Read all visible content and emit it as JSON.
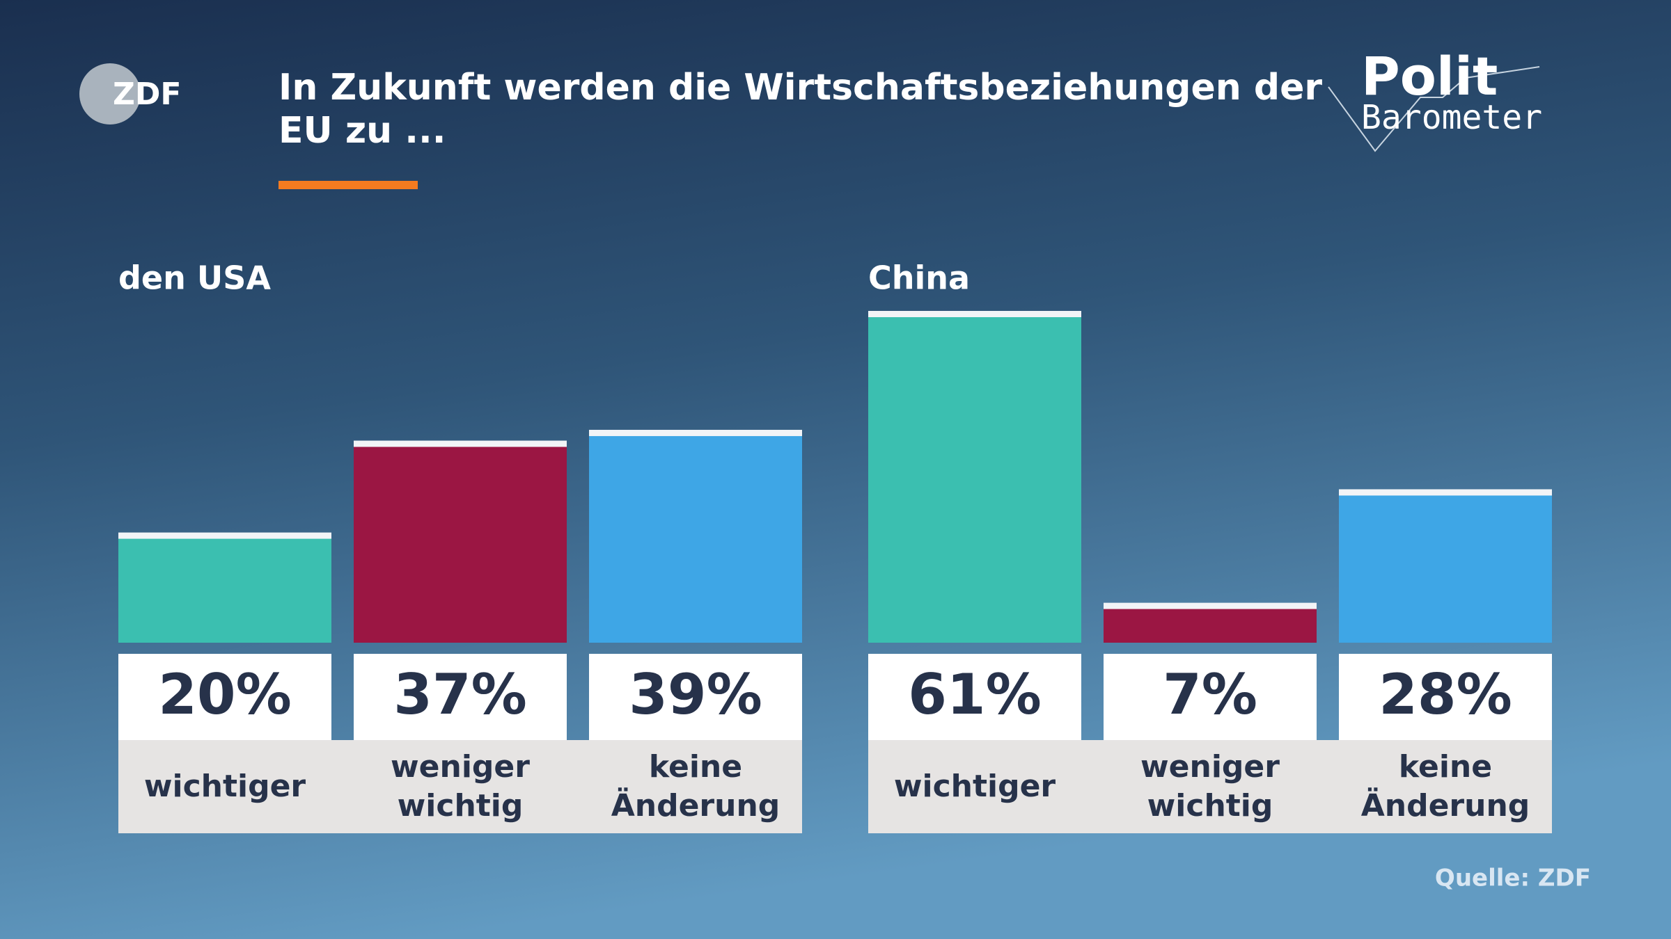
{
  "title": "In Zukunft werden die Wirtschaftsbeziehungen der EU zu ...",
  "logo": "ZDF",
  "brand": [
    "Polit",
    "Barometer"
  ],
  "source": "Quelle: ZDF",
  "chart_data": [
    {
      "type": "bar",
      "title": "den USA",
      "categories": [
        "wichtiger",
        "weniger wichtig",
        "keine Änderung"
      ],
      "values": [
        20,
        37,
        39
      ],
      "value_labels": [
        "20%",
        "37%",
        "39%"
      ],
      "colors": [
        "#3bbfb0",
        "#9b1643",
        "#3ea6e6"
      ]
    },
    {
      "type": "bar",
      "title": "China",
      "categories": [
        "wichtiger",
        "weniger wichtig",
        "keine Änderung"
      ],
      "values": [
        61,
        7,
        28
      ],
      "value_labels": [
        "61%",
        "7%",
        "28%"
      ],
      "colors": [
        "#3bbfb0",
        "#9b1643",
        "#3ea6e6"
      ]
    }
  ]
}
